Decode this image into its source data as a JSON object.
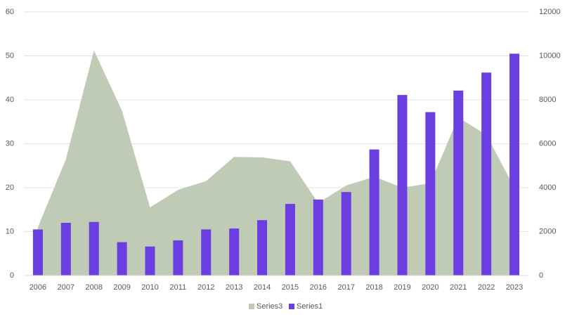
{
  "chart_data": {
    "type": "bar-area",
    "categories": [
      "2006",
      "2007",
      "2008",
      "2009",
      "2010",
      "2011",
      "2012",
      "2013",
      "2014",
      "2015",
      "2016",
      "2017",
      "2018",
      "2019",
      "2020",
      "2021",
      "2022",
      "2023"
    ],
    "series": [
      {
        "name": "Series3",
        "type": "area",
        "axis": "y2",
        "color": "#bfcbb5",
        "values": [
          2200,
          5300,
          10250,
          7500,
          3100,
          3900,
          4300,
          5400,
          5380,
          5200,
          3300,
          4100,
          4500,
          4000,
          4200,
          7200,
          6400,
          4000
        ]
      },
      {
        "name": "Series1",
        "type": "bar",
        "axis": "y",
        "color": "#6a3ee0",
        "values": [
          10.5,
          12,
          12.2,
          7.6,
          6.6,
          8,
          10.5,
          10.7,
          12.6,
          16.3,
          17.3,
          19,
          28.7,
          41.1,
          37.2,
          42.1,
          46.2,
          50.5
        ]
      }
    ],
    "ylim": [
      0,
      60
    ],
    "yticks": [
      0,
      10,
      20,
      30,
      40,
      50,
      60
    ],
    "y2lim": [
      0,
      12000
    ],
    "y2ticks": [
      0,
      2000,
      4000,
      6000,
      8000,
      10000,
      12000
    ],
    "grid": true
  }
}
